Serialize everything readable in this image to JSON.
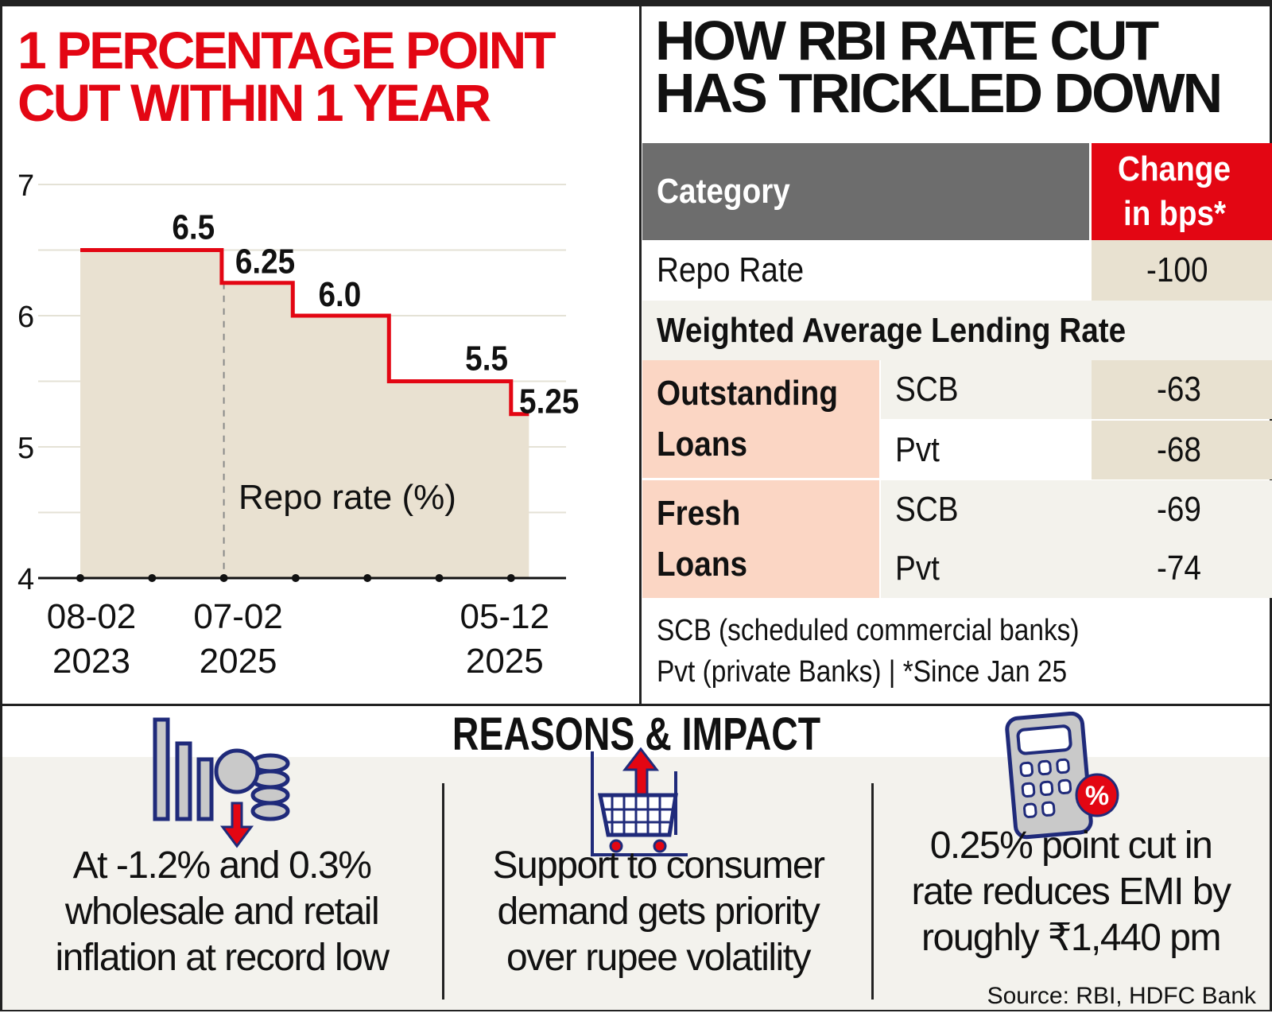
{
  "left_panel": {
    "title_line1": "1 PERCENTAGE POINT",
    "title_line2": "CUT WITHIN 1 YEAR"
  },
  "chart_data": {
    "type": "line",
    "subtype": "step",
    "title": "1 PERCENTAGE POINT CUT WITHIN 1 YEAR",
    "series_label": "Repo rate (%)",
    "ylim": [
      4,
      7
    ],
    "yticks": [
      "4",
      "5",
      "6",
      "7"
    ],
    "xtick_labels": [
      {
        "index": 0,
        "line1": "08-02",
        "line2": "2023"
      },
      {
        "index": 2,
        "line1": "07-02",
        "line2": "2025"
      },
      {
        "index": 6,
        "line1": "05-12",
        "line2": "2025"
      }
    ],
    "x_marker_count": 7,
    "steps": [
      {
        "value": 6.5,
        "label": "6.5",
        "x_start": 0,
        "x_end": 1.97
      },
      {
        "value": 6.25,
        "label": "6.25",
        "x_start": 1.97,
        "x_end": 2.96
      },
      {
        "value": 6.0,
        "label": "6.0",
        "x_start": 2.96,
        "x_end": 4.3
      },
      {
        "value": 5.5,
        "label": "5.5",
        "x_start": 4.3,
        "x_end": 6.0
      },
      {
        "value": 5.25,
        "label": "5.25",
        "x_start": 6.0,
        "x_end": 6.25
      }
    ],
    "dashed_marker_index": 2,
    "grid": true,
    "colors": {
      "line": "#e30613",
      "fill": "#e9e1d1"
    }
  },
  "right_panel": {
    "title_line1": "HOW RBI RATE CUT",
    "title_line2": "HAS TRICKLED DOWN",
    "table": {
      "header_category": "Category",
      "header_change_1": "Change",
      "header_change_2": "in bps*",
      "repo_label": "Repo Rate",
      "repo_value": "-100",
      "walr_label": "Weighted Average Lending Rate",
      "groups": [
        {
          "label_1": "Outstanding",
          "label_2": "Loans",
          "rows": [
            {
              "bank": "SCB",
              "value": "-63"
            },
            {
              "bank": "Pvt",
              "value": "-68"
            }
          ]
        },
        {
          "label_1": "Fresh",
          "label_2": "Loans",
          "rows": [
            {
              "bank": "SCB",
              "value": "-69"
            },
            {
              "bank": "Pvt",
              "value": "-74"
            }
          ]
        }
      ]
    },
    "note_1": "SCB (scheduled commercial banks)",
    "note_2": "Pvt (private Banks) | *Since Jan 25"
  },
  "reasons": {
    "title": "REASONS & IMPACT",
    "items": [
      {
        "icon": "falling-bars-coins-icon",
        "lines": [
          "At -1.2% and 0.3%",
          "wholesale and retail",
          "inflation at record low"
        ]
      },
      {
        "icon": "shopping-cart-up-icon",
        "lines": [
          "Support to consumer",
          "demand gets priority",
          "over rupee volatility"
        ]
      },
      {
        "icon": "calculator-percent-icon",
        "lines": [
          "0.25% point cut in",
          "rate reduces EMI by",
          "roughly ₹1,440 pm"
        ]
      }
    ],
    "source": "Source: RBI, HDFC Bank"
  }
}
